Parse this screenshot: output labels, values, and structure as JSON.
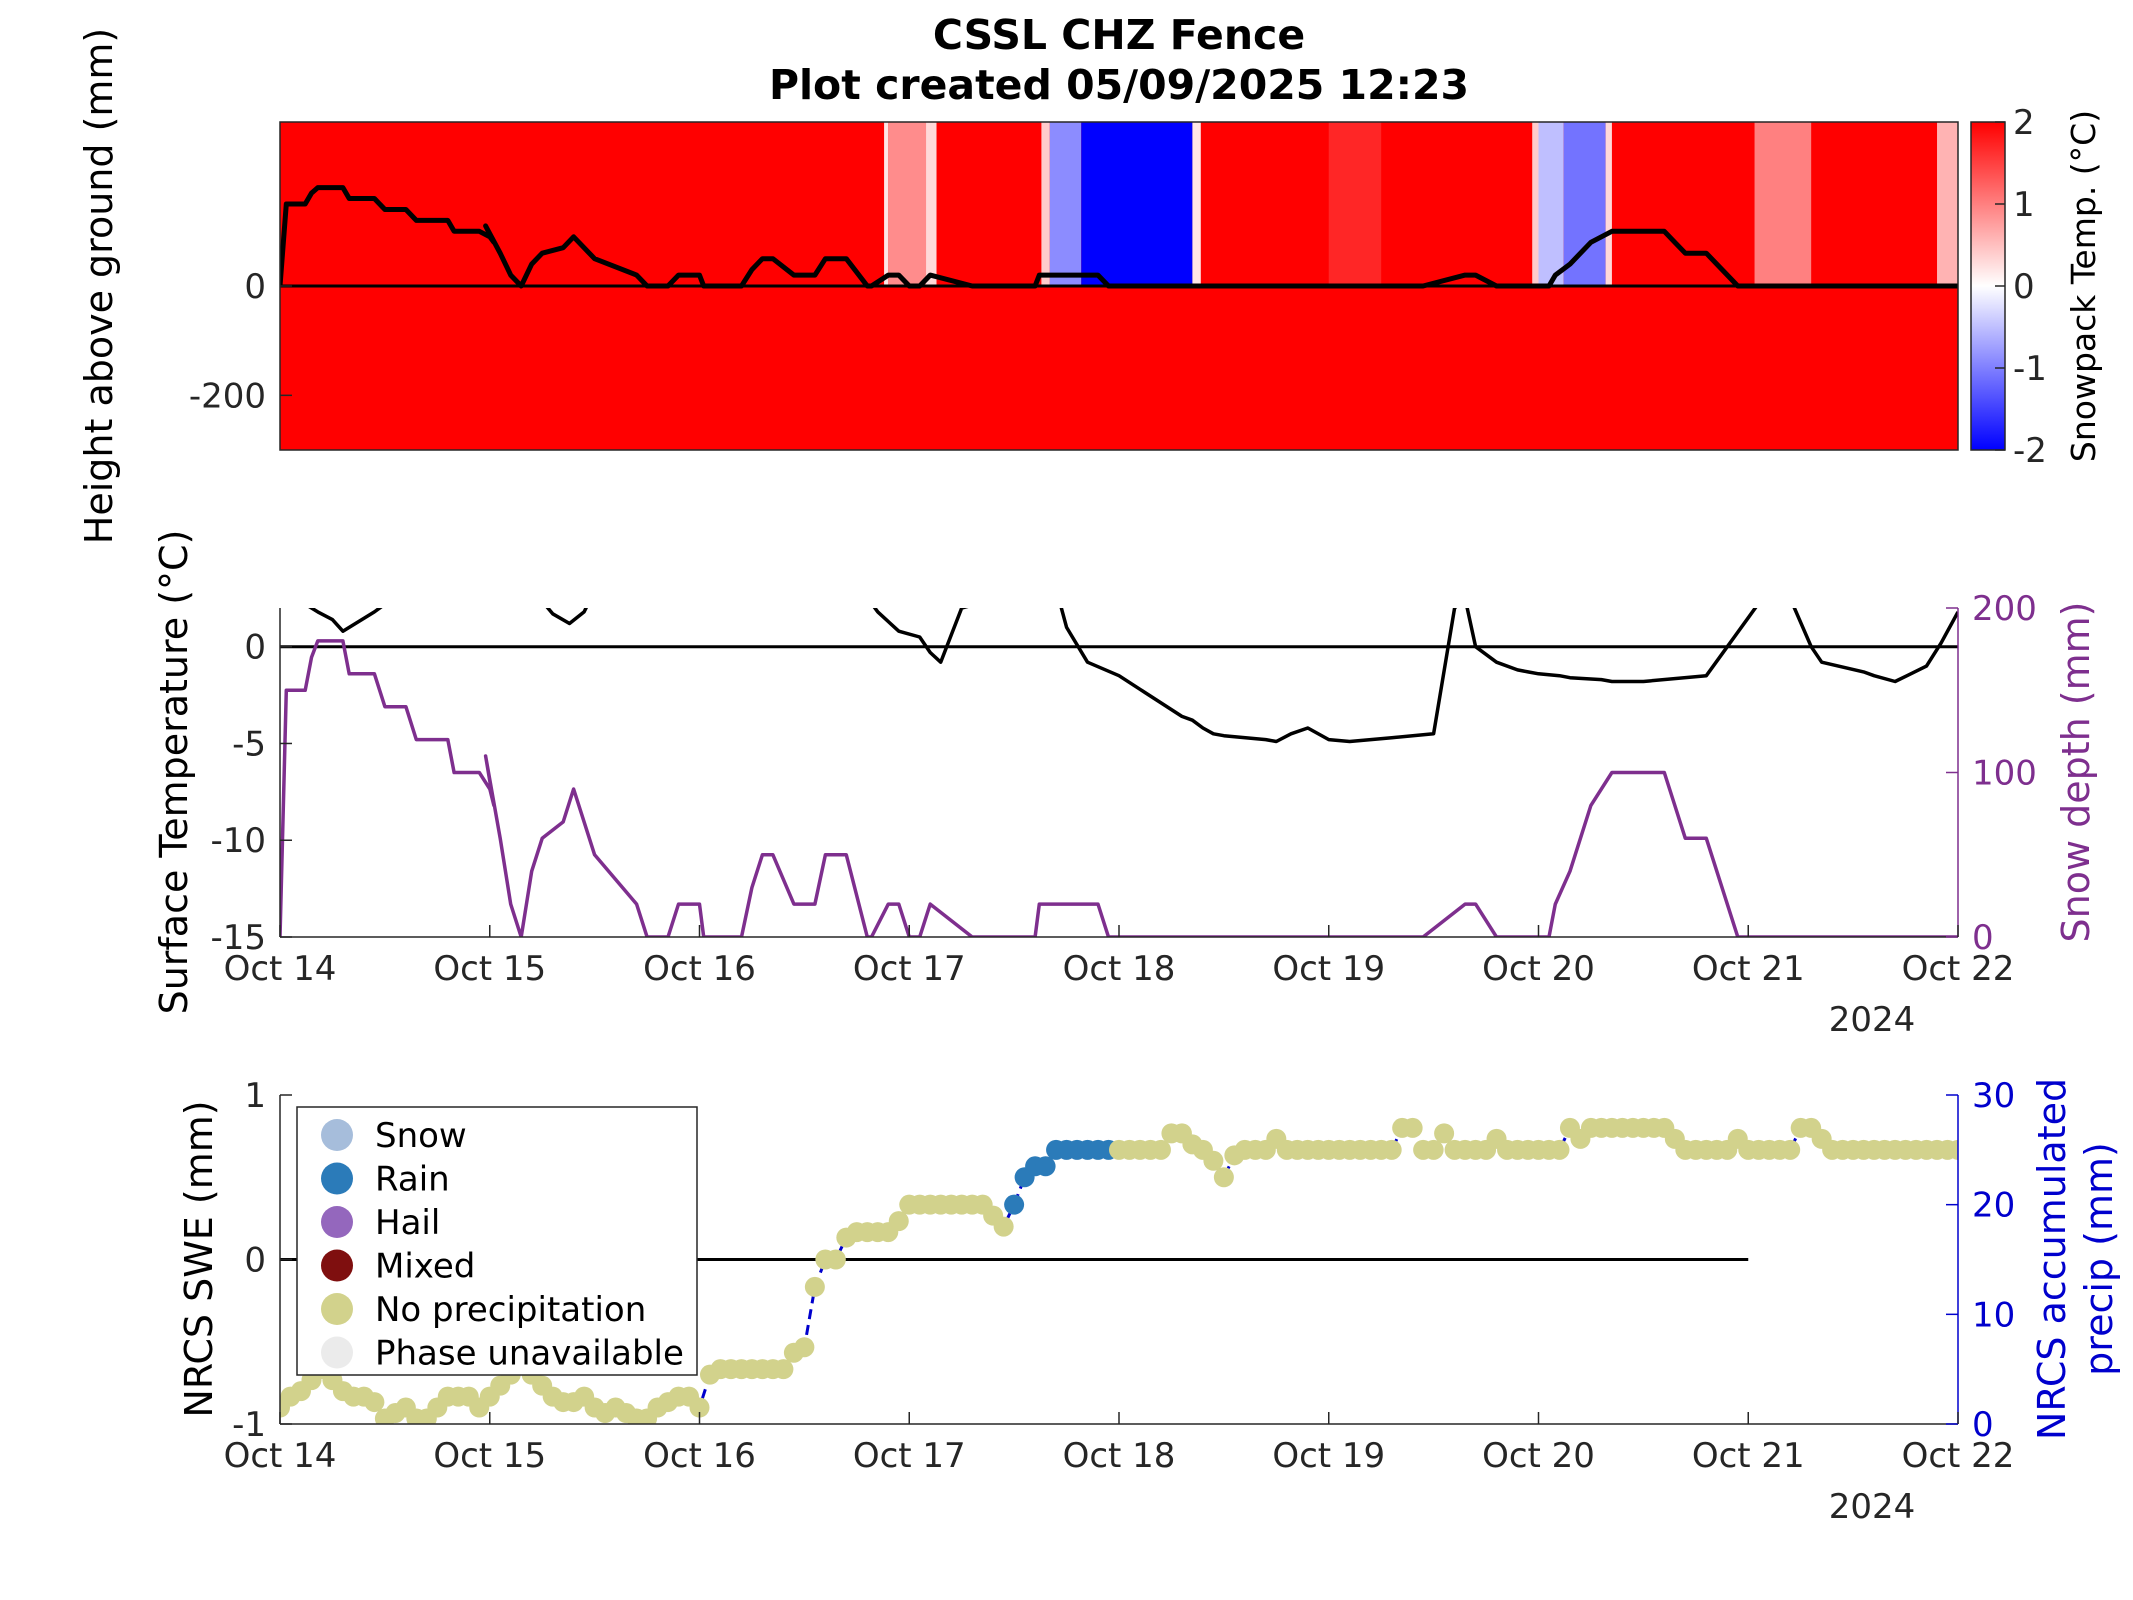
{
  "title_line1": "CSSL CHZ Fence",
  "title_line2": "Plot created 05/09/2025 12:23",
  "x_axis": {
    "tick_labels": [
      "Oct 14",
      "Oct 15",
      "Oct 16",
      "Oct 17",
      "Oct 18",
      "Oct 19",
      "Oct 20",
      "Oct 21",
      "Oct 22"
    ],
    "year_label": "2024"
  },
  "colors": {
    "warm": "#ff0000",
    "neutral": "#ffffff",
    "cold": "#0000ff",
    "snow_depth": "#7e2f8e",
    "precip_axis": "#0000cd",
    "temp_line": "#000000",
    "phase_snow": "#a6bddb",
    "phase_rain": "#2b7bb9",
    "phase_hail": "#9467bd",
    "phase_mixed": "#7f0f0f",
    "phase_none": "#d2d28c",
    "phase_unavailable": "#ebebeb"
  },
  "chart_data": [
    {
      "type": "heatmap",
      "ylabel": "Height above ground (mm)",
      "colorbar_label": "Snowpack Temp. (°C)",
      "colorbar_ticks": [
        "2",
        "1",
        "0",
        "-1",
        "-2"
      ],
      "colorbar_range": [
        -2,
        2
      ],
      "y_tick_labels": [
        "0",
        "-200"
      ],
      "ylim": [
        -300,
        300
      ],
      "xlim_days": [
        0,
        8
      ],
      "cold_bands": [
        {
          "start": 2.88,
          "end": 2.9,
          "temp": 0.2
        },
        {
          "start": 2.9,
          "end": 3.08,
          "temp": 0.9
        },
        {
          "start": 3.08,
          "end": 3.13,
          "temp": 0.3
        },
        {
          "start": 3.63,
          "end": 3.67,
          "temp": 0.4
        },
        {
          "start": 3.67,
          "end": 3.82,
          "temp": -0.9
        },
        {
          "start": 3.82,
          "end": 4.35,
          "temp": -2.0
        },
        {
          "start": 4.35,
          "end": 4.39,
          "temp": 0.2
        },
        {
          "start": 5.0,
          "end": 5.25,
          "temp": 1.7
        },
        {
          "start": 5.97,
          "end": 6.0,
          "temp": 0.4
        },
        {
          "start": 6.0,
          "end": 6.12,
          "temp": -0.5
        },
        {
          "start": 6.12,
          "end": 6.32,
          "temp": -1.1
        },
        {
          "start": 6.32,
          "end": 6.35,
          "temp": 0.3
        },
        {
          "start": 7.03,
          "end": 7.3,
          "temp": 1.0
        },
        {
          "start": 7.9,
          "end": 8.0,
          "temp": 0.6
        }
      ],
      "snow_depth_mm": {
        "x": [
          0,
          0.03,
          0.12,
          0.15,
          0.18,
          0.3,
          0.33,
          0.45,
          0.5,
          0.6,
          0.65,
          0.8,
          0.83,
          0.95,
          1.0,
          1.02,
          0.98,
          1.05,
          1.1,
          1.15,
          1.2,
          1.25,
          1.35,
          1.4,
          1.5,
          1.7,
          1.75,
          1.85,
          1.9,
          2.0,
          2.02,
          2.1,
          2.2,
          2.25,
          2.3,
          2.35,
          2.45,
          2.55,
          2.6,
          2.7,
          2.8,
          2.82,
          2.9,
          2.95,
          3.0,
          3.02,
          3.05,
          3.1,
          3.3,
          3.5,
          3.6,
          3.62,
          3.7,
          3.9,
          3.95,
          4.0,
          4.5,
          4.9,
          5.2,
          5.25,
          5.4,
          5.45,
          5.65,
          5.7,
          5.8,
          5.85,
          5.95,
          6.05,
          6.08,
          6.15,
          6.25,
          6.35,
          6.6,
          6.65,
          6.7,
          6.8,
          6.85,
          6.95,
          7.1,
          7.15,
          7.2,
          7.25,
          7.3,
          8.0
        ],
        "y": [
          0,
          150,
          150,
          170,
          180,
          180,
          160,
          160,
          140,
          140,
          120,
          120,
          100,
          100,
          90,
          80,
          110,
          60,
          20,
          0,
          40,
          60,
          70,
          90,
          50,
          20,
          0,
          0,
          20,
          20,
          0,
          0,
          0,
          30,
          50,
          50,
          20,
          20,
          50,
          50,
          0,
          0,
          20,
          20,
          0,
          -20,
          0,
          20,
          0,
          0,
          0,
          20,
          20,
          20,
          0,
          0,
          0,
          0,
          0,
          0,
          0,
          0,
          20,
          20,
          0,
          0,
          0,
          0,
          20,
          40,
          80,
          100,
          100,
          80,
          60,
          60,
          40,
          0,
          -20,
          0,
          -10,
          0,
          0,
          0
        ]
      }
    },
    {
      "type": "line",
      "ylabel_left": "Surface Temperature (°C)",
      "ylabel_right": "Snow depth (mm)",
      "y_tick_labels_left": [
        "0",
        "-5",
        "-10",
        "-15"
      ],
      "y_tick_labels_right": [
        "200",
        "100",
        "0"
      ],
      "ylim_left": [
        -15,
        2
      ],
      "ylim_right": [
        0,
        200
      ],
      "xlim_days": [
        0,
        8
      ],
      "series": [
        {
          "x": [
            0,
            0.18,
            0.25,
            0.3,
            0.45,
            0.6,
            0.75,
            1.2,
            1.3,
            1.38,
            1.45,
            1.55,
            1.65,
            2.7,
            2.85,
            2.95,
            3.05,
            3.1,
            3.15,
            3.25,
            3.6,
            3.7,
            3.75,
            3.85,
            4.0,
            4.1,
            4.3,
            4.35,
            4.4,
            4.45,
            4.5,
            4.7,
            4.75,
            4.82,
            4.9,
            5.0,
            5.1,
            5.3,
            5.5,
            5.6,
            5.65,
            5.7,
            5.8,
            5.9,
            5.95,
            6.0,
            6.1,
            6.15,
            6.3,
            6.35,
            6.5,
            6.8,
            6.9,
            7.0,
            7.1,
            7.2,
            7.3,
            7.35,
            7.55,
            7.6,
            7.7,
            7.85,
            7.92,
            8.0
          ],
          "y": [
            3,
            1.8,
            1.4,
            0.8,
            1.8,
            3,
            5,
            3,
            1.7,
            1.2,
            1.8,
            4,
            6,
            4,
            1.8,
            0.8,
            0.5,
            -0.3,
            -0.8,
            2,
            3,
            3,
            1,
            -0.8,
            -1.5,
            -2.2,
            -3.6,
            -3.8,
            -4.2,
            -4.5,
            -4.6,
            -4.8,
            -4.9,
            -4.5,
            -4.2,
            -4.8,
            -4.9,
            -4.7,
            -4.5,
            2,
            2.5,
            0,
            -0.8,
            -1.2,
            -1.3,
            -1.4,
            -1.5,
            -1.6,
            -1.7,
            -1.8,
            -1.8,
            -1.5,
            0,
            1.5,
            3,
            2.5,
            0,
            -0.8,
            -1.3,
            -1.5,
            -1.8,
            -1,
            0.2,
            1.8
          ]
        },
        {
          "name": "Snow depth (mm)",
          "ref": "snow_depth_mm"
        }
      ]
    },
    {
      "type": "scatter",
      "ylabel_left": "NRCS SWE (mm)",
      "ylabel_right": "NRCS accumulated precip (mm)",
      "y_tick_labels_left": [
        "1",
        "0",
        "-1"
      ],
      "y_tick_labels_right": [
        "30",
        "20",
        "10",
        "0"
      ],
      "ylim_left": [
        -1,
        1
      ],
      "ylim_right": [
        0,
        30
      ],
      "xlim_days": [
        0,
        8
      ],
      "swe_zero_line_end_day": 7,
      "legend": [
        "Snow",
        "Rain",
        "Hail",
        "Mixed",
        "No precipitation",
        "Phase unavailable"
      ],
      "legend_position": "top-left",
      "precip_x": [
        0,
        0.05,
        0.1,
        0.15,
        0.2,
        0.25,
        0.3,
        0.35,
        0.4,
        0.45,
        0.5,
        0.55,
        0.6,
        0.65,
        0.7,
        0.75,
        0.8,
        0.85,
        0.9,
        0.95,
        1.0,
        1.05,
        1.1,
        1.15,
        1.2,
        1.25,
        1.3,
        1.35,
        1.4,
        1.45,
        1.5,
        1.55,
        1.6,
        1.65,
        1.7,
        1.75,
        1.8,
        1.85,
        1.9,
        1.95,
        2.0,
        2.05,
        2.1,
        2.15,
        2.2,
        2.25,
        2.3,
        2.35,
        2.4,
        2.45,
        2.5,
        2.55,
        2.6,
        2.65,
        2.7,
        2.75,
        2.8,
        2.85,
        2.9,
        2.95,
        3.0,
        3.05,
        3.1,
        3.15,
        3.2,
        3.25,
        3.3,
        3.35,
        3.4,
        3.45,
        3.5,
        3.55,
        3.6,
        3.65,
        3.7,
        3.75,
        3.8,
        3.85,
        3.9,
        3.95,
        4.0,
        4.05,
        4.1,
        4.15,
        4.2,
        4.25,
        4.3,
        4.35,
        4.4,
        4.45,
        4.5,
        4.55,
        4.6,
        4.65,
        4.7,
        4.75,
        4.8,
        4.85,
        4.9,
        4.95,
        5.0,
        5.05,
        5.1,
        5.15,
        5.2,
        5.25,
        5.3,
        5.35,
        5.4,
        5.45,
        5.5,
        5.55,
        5.6,
        5.65,
        5.7,
        5.75,
        5.8,
        5.85,
        5.9,
        5.95,
        6.0,
        6.05,
        6.1,
        6.15,
        6.2,
        6.25,
        6.3,
        6.35,
        6.4,
        6.45,
        6.5,
        6.55,
        6.6,
        6.65,
        6.7,
        6.75,
        6.8,
        6.85,
        6.9,
        6.95,
        7.0,
        7.05,
        7.1,
        7.15,
        7.2,
        7.25,
        7.3,
        7.35,
        7.4,
        7.45,
        7.5,
        7.55,
        7.6,
        7.65,
        7.7,
        7.75,
        7.8,
        7.85,
        7.9,
        7.95,
        8.0
      ],
      "precip_y": [
        1.5,
        2.5,
        3,
        4,
        5,
        4,
        3,
        2.5,
        2.5,
        2,
        0.5,
        1,
        1.5,
        0.5,
        0.5,
        1.5,
        2.5,
        2.5,
        2.5,
        1.5,
        2.5,
        3.5,
        4.5,
        5.5,
        4.5,
        3.5,
        2.5,
        2,
        2,
        2.5,
        1.5,
        1,
        1.5,
        1,
        0.5,
        0.5,
        1.5,
        2,
        2.5,
        2.5,
        1.5,
        4.5,
        5,
        5,
        5,
        5,
        5,
        5,
        5,
        6.5,
        7,
        12.5,
        15,
        15,
        17,
        17.5,
        17.5,
        17.5,
        17.5,
        18.5,
        20,
        20,
        20,
        20,
        20,
        20,
        20,
        20,
        19,
        18,
        20,
        22.5,
        23.5,
        23.5,
        25,
        25,
        25,
        25,
        25,
        25,
        25,
        25,
        25,
        25,
        25,
        26.5,
        26.5,
        25.5,
        25,
        24,
        22.5,
        24.5,
        25,
        25,
        25,
        26,
        25,
        25,
        25,
        25,
        25,
        25,
        25,
        25,
        25,
        25,
        25,
        27,
        27,
        25,
        25,
        26.5,
        25,
        25,
        25,
        25,
        26,
        25,
        25,
        25,
        25,
        25,
        25,
        27,
        26,
        27,
        27,
        27,
        27,
        27,
        27,
        27,
        27,
        26,
        25,
        25,
        25,
        25,
        25,
        26,
        25,
        25,
        25,
        25,
        25,
        27,
        27,
        26,
        25,
        25,
        25,
        25,
        25,
        25,
        25,
        25,
        25,
        25,
        25,
        25,
        25,
        25,
        25,
        25,
        25,
        25,
        25,
        25,
        25
      ],
      "rain_indices": [
        70,
        71,
        72,
        73,
        74,
        75,
        76,
        77,
        78,
        79
      ]
    }
  ]
}
